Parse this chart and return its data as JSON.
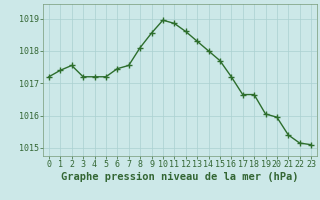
{
  "x": [
    0,
    1,
    2,
    3,
    4,
    5,
    6,
    7,
    8,
    9,
    10,
    11,
    12,
    13,
    14,
    15,
    16,
    17,
    18,
    19,
    20,
    21,
    22,
    23
  ],
  "y": [
    1017.2,
    1017.4,
    1017.55,
    1017.2,
    1017.2,
    1017.2,
    1017.45,
    1017.55,
    1018.1,
    1018.55,
    1018.95,
    1018.85,
    1018.6,
    1018.3,
    1018.0,
    1017.7,
    1017.2,
    1016.65,
    1016.65,
    1016.05,
    1015.95,
    1015.4,
    1015.15,
    1015.1
  ],
  "ylim": [
    1014.75,
    1019.45
  ],
  "yticks": [
    1015,
    1016,
    1017,
    1018,
    1019
  ],
  "xticks": [
    0,
    1,
    2,
    3,
    4,
    5,
    6,
    7,
    8,
    9,
    10,
    11,
    12,
    13,
    14,
    15,
    16,
    17,
    18,
    19,
    20,
    21,
    22,
    23
  ],
  "xlabel": "Graphe pression niveau de la mer (hPa)",
  "line_color": "#2d6e2d",
  "marker_color": "#2d6e2d",
  "bg_color": "#cce8e8",
  "grid_color": "#aad0d0",
  "axis_color": "#336633",
  "xlabel_fontsize": 7.5,
  "tick_fontsize": 6.0,
  "line_width": 1.0,
  "marker_size": 2.2
}
